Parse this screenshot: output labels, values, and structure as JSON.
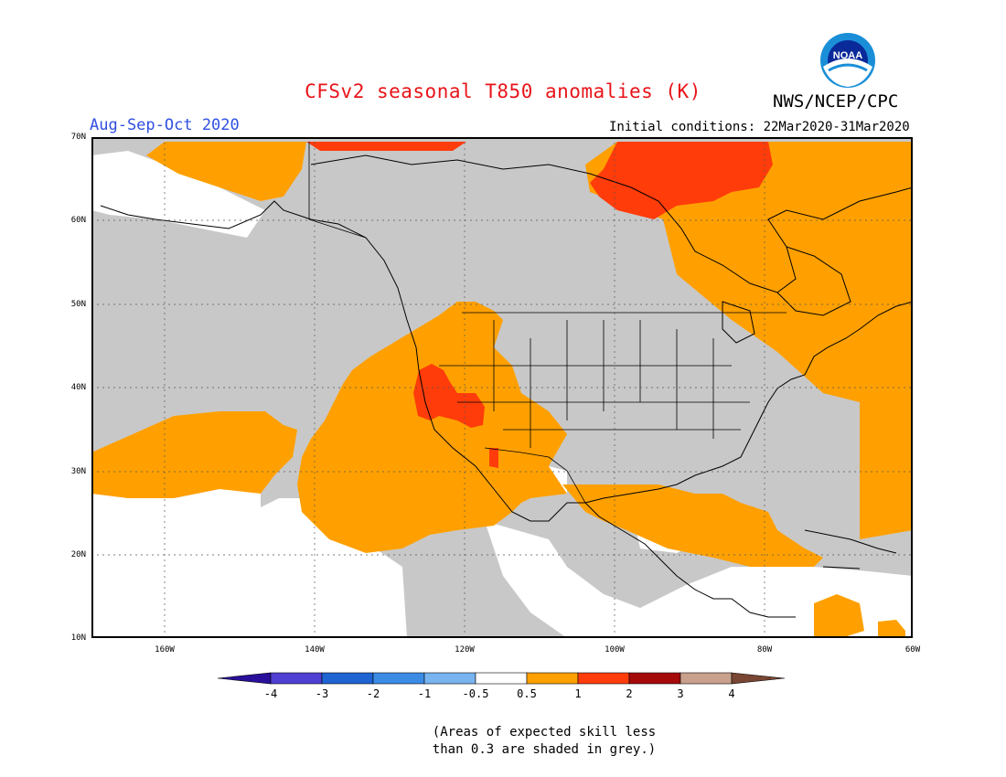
{
  "title": "CFSv2 seasonal T850 anomalies (K)",
  "agency": "NWS/NCEP/CPC",
  "season": "Aug-Sep-Oct 2020",
  "initial_conditions": "Initial conditions: 22Mar2020-31Mar2020",
  "logo_text": "NOAA",
  "latitude_labels": [
    "70N",
    "60N",
    "50N",
    "40N",
    "30N",
    "20N",
    "10N"
  ],
  "longitude_labels": [
    "160W",
    "140W",
    "120W",
    "100W",
    "80W",
    "60W"
  ],
  "colorbar": {
    "labels": [
      "-4",
      "-3",
      "-2",
      "-1",
      "-0.5",
      "0.5",
      "1",
      "2",
      "3",
      "4"
    ],
    "colors": [
      "#2a0f9a",
      "#4f3fd2",
      "#1e64d2",
      "#3c8ce6",
      "#78b4f0",
      "#ffffff",
      "#ffa000",
      "#ff3c0a",
      "#a50a0a",
      "#c8a08c",
      "#784632"
    ]
  },
  "map_colors": {
    "grey": "#c8c8c8",
    "orange": "#ffa000",
    "red_orange": "#ff3c0a",
    "white": "#ffffff"
  },
  "note_line1": "(Areas of expected skill less",
  "note_line2": "than 0.3 are shaded in grey.)"
}
